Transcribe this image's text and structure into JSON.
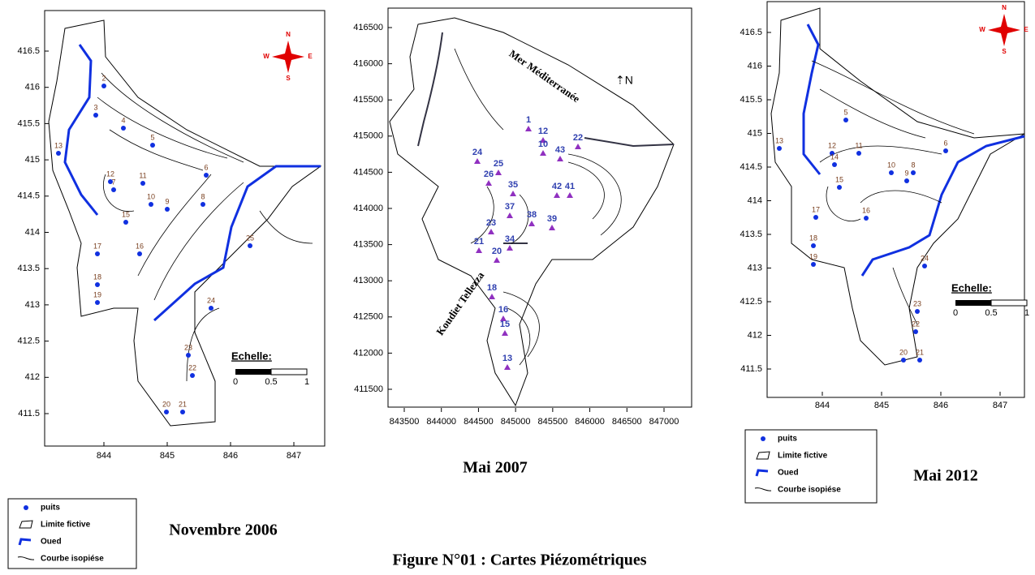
{
  "figure_title": "Figure N°01 : Cartes Piézométriques",
  "maps": [
    {
      "caption": "Novembre 2006",
      "xticks": [
        844,
        845,
        846,
        847
      ],
      "yticks": [
        416.5,
        416,
        415.5,
        415,
        414.5,
        414,
        413.5,
        413,
        412.5,
        412,
        411.5
      ],
      "compass": [
        "N",
        "S",
        "E",
        "W"
      ],
      "scale": {
        "title": "Echelle:",
        "labels": [
          "0",
          "0.5",
          "1"
        ]
      },
      "wells": [
        "2",
        "3",
        "4",
        "5",
        "13",
        "12",
        "11",
        "10",
        "9",
        "8",
        "7",
        "6",
        "15",
        "16",
        "17",
        "18",
        "19",
        "24",
        "25",
        "23",
        "22",
        "20",
        "21"
      ],
      "legend": [
        "puits",
        "Limite fictive",
        "Oued",
        "Courbe isopiése"
      ]
    },
    {
      "caption": "Mai 2007",
      "xticks": [
        843500,
        844000,
        844500,
        845000,
        845500,
        846000,
        846500,
        847000
      ],
      "yticks": [
        416500,
        416000,
        415500,
        415000,
        414500,
        414000,
        413500,
        413000,
        412500,
        412000,
        411500
      ],
      "annotations": [
        "Mer Méditerranée",
        "Koudiet Tellezza"
      ],
      "wells": [
        "1",
        "12",
        "10",
        "22",
        "43",
        "24",
        "25",
        "26",
        "35",
        "42",
        "41",
        "37",
        "38",
        "39",
        "23",
        "21",
        "34",
        "20",
        "18",
        "16",
        "15",
        "13"
      ]
    },
    {
      "caption": "Mai 2012",
      "xticks": [
        844,
        845,
        846,
        847
      ],
      "yticks": [
        416.5,
        416,
        415.5,
        415,
        414.5,
        414,
        413.5,
        413,
        412.5,
        412,
        411.5
      ],
      "compass": [
        "N",
        "S",
        "E",
        "W"
      ],
      "scale": {
        "title": "Echelle:",
        "labels": [
          "0",
          "0.5",
          "1"
        ]
      },
      "wells": [
        "5",
        "13",
        "12",
        "11",
        "10",
        "9",
        "8",
        "6",
        "14",
        "15",
        "16",
        "17",
        "18",
        "19",
        "24",
        "23",
        "22",
        "20",
        "21"
      ],
      "legend": [
        "puits",
        "Limite fictive",
        "Oued",
        "Courbe isopiése"
      ]
    }
  ]
}
